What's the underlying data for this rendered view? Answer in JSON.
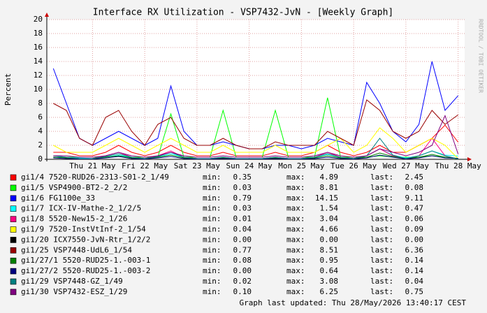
{
  "chart_data": {
    "type": "line",
    "title": "Interface RX Utilization - VSP7432-JvN - [Weekly Graph]",
    "y_label": "Percent",
    "watermark": "RRDTOOL / TOBI OETIKER",
    "footer": "Graph last updated: Thu 28/May/2026 13:40:17 CEST",
    "stat_labels": [
      "min:",
      "max:",
      "last:"
    ],
    "ylim": [
      0,
      20
    ],
    "yticks": [
      0,
      2,
      4,
      6,
      8,
      10,
      12,
      14,
      16,
      18,
      20
    ],
    "grid": true,
    "categories": [
      null,
      null,
      null,
      "Thu 21 May",
      null,
      null,
      null,
      "Fri 22 May",
      null,
      null,
      null,
      "Sat 23 May",
      null,
      null,
      null,
      "Sun 24 May",
      null,
      null,
      null,
      "Mon 25 May",
      null,
      null,
      null,
      "Tue 26 May",
      null,
      null,
      null,
      "Wed 27 May",
      null,
      null,
      null,
      "Thu 28 May"
    ],
    "series": [
      {
        "name": "gi1/4 7520-RUD26-2313-S01-2_1/49",
        "color": "#ff0000",
        "min": "0.35",
        "max": "4.89",
        "last": "2.45",
        "values": [
          1,
          1,
          0.5,
          0.5,
          1,
          2,
          1,
          0.5,
          1,
          2,
          1,
          0.5,
          0.5,
          1,
          0.5,
          0.5,
          0.5,
          1,
          0.5,
          0.5,
          1,
          2,
          1,
          0.5,
          1,
          2,
          1,
          1,
          2,
          3,
          4.89,
          2.45
        ]
      },
      {
        "name": "gi1/5 VSP4900-BT2-2_2/2",
        "color": "#00ff00",
        "min": "0.03",
        "max": "8.81",
        "last": "0.08",
        "values": [
          0.3,
          0.3,
          0.3,
          0.3,
          0.3,
          0.5,
          0.3,
          0.3,
          0.3,
          6.5,
          0.3,
          0.3,
          0.3,
          7,
          0.3,
          0.3,
          0.3,
          7,
          0.3,
          0.3,
          0.3,
          8.81,
          0.3,
          0.3,
          0.3,
          0.5,
          0.3,
          0.3,
          0.3,
          0.5,
          0.3,
          0.08
        ]
      },
      {
        "name": "gi1/6 FG1100e_33",
        "color": "#0000ff",
        "min": "0.79",
        "max": "14.15",
        "last": "9.11",
        "values": [
          13,
          8,
          3,
          2,
          3,
          4,
          3,
          2,
          3,
          10.5,
          4,
          2,
          2,
          2.5,
          2,
          1.5,
          1.5,
          2,
          2,
          1.5,
          2,
          3,
          2.5,
          2,
          11,
          8,
          4,
          2.5,
          5,
          14,
          7,
          9.11
        ]
      },
      {
        "name": "gi1/7 ICX-IV-Mathe-2_1/2/5",
        "color": "#00ffff",
        "min": "0.03",
        "max": "1.54",
        "last": "0.47",
        "values": [
          0.3,
          0.3,
          0.2,
          0.1,
          0.3,
          0.6,
          0.3,
          0.1,
          0.3,
          0.8,
          0.3,
          0.1,
          0.1,
          0.3,
          0.1,
          0.1,
          0.1,
          0.3,
          0.1,
          0.1,
          0.3,
          0.7,
          0.3,
          0.1,
          0.5,
          1.5,
          0.6,
          0.2,
          0.5,
          1.2,
          0.6,
          0.47
        ]
      },
      {
        "name": "gi1/8 5520-New15-2_1/26",
        "color": "#ff0080",
        "min": "0.01",
        "max": "3.04",
        "last": "0.06",
        "values": [
          0.5,
          0.3,
          0.1,
          0.1,
          0.5,
          1,
          0.3,
          0.1,
          0.5,
          1.2,
          0.3,
          0.1,
          0.1,
          0.3,
          0.1,
          0.1,
          0.1,
          0.3,
          0.1,
          0.1,
          0.3,
          1,
          0.3,
          0.1,
          0.5,
          1.5,
          0.5,
          0.1,
          0.5,
          3,
          0.5,
          0.06
        ]
      },
      {
        "name": "gi1/9 7520-InstVtInf-2_1/54",
        "color": "#ffff00",
        "min": "0.04",
        "max": "4.66",
        "last": "0.09",
        "values": [
          2,
          1,
          1,
          1,
          2,
          3,
          2,
          1,
          2,
          3,
          2,
          1,
          1,
          2,
          1,
          1,
          1,
          2,
          1,
          1,
          1,
          2,
          3,
          1,
          2,
          4.5,
          3,
          1,
          2,
          3,
          2,
          0.09
        ]
      },
      {
        "name": "gi1/20 ICX7550-JvN-Rtr_1/2/2",
        "color": "#000000",
        "min": "0.00",
        "max": "0.00",
        "last": "0.00",
        "values": [
          0,
          0,
          0,
          0,
          0,
          0,
          0,
          0,
          0,
          0,
          0,
          0,
          0,
          0,
          0,
          0,
          0,
          0,
          0,
          0,
          0,
          0,
          0,
          0,
          0,
          0,
          0,
          0,
          0,
          0,
          0,
          0
        ]
      },
      {
        "name": "gi1/25 VSP7448-UdL6_1/54",
        "color": "#990000",
        "min": "0.77",
        "max": "8.51",
        "last": "6.36",
        "values": [
          8,
          7,
          3,
          2,
          6,
          7,
          4,
          2,
          5,
          6,
          3,
          2,
          2,
          3,
          2,
          1.5,
          1.5,
          2.5,
          2,
          2,
          2,
          4,
          3,
          2,
          8.5,
          7,
          4,
          3,
          4,
          7,
          5,
          6.36
        ]
      },
      {
        "name": "gi1/27/1 5520-RUD25-1.-003-1",
        "color": "#008000",
        "min": "0.08",
        "max": "0.95",
        "last": "0.14",
        "values": [
          0.3,
          0.2,
          0.1,
          0.1,
          0.3,
          0.5,
          0.2,
          0.1,
          0.3,
          0.6,
          0.2,
          0.1,
          0.1,
          0.2,
          0.1,
          0.1,
          0.1,
          0.2,
          0.1,
          0.1,
          0.2,
          0.5,
          0.2,
          0.1,
          0.3,
          0.9,
          0.4,
          0.1,
          0.3,
          0.7,
          0.3,
          0.14
        ]
      },
      {
        "name": "gi1/27/2 5520-RUD25-1.-003-2",
        "color": "#000080",
        "min": "0.00",
        "max": "0.64",
        "last": "0.14",
        "values": [
          0.2,
          0.1,
          0.05,
          0.05,
          0.2,
          0.4,
          0.1,
          0.05,
          0.2,
          0.4,
          0.1,
          0.05,
          0.05,
          0.1,
          0.05,
          0.05,
          0.05,
          0.1,
          0.05,
          0.05,
          0.1,
          0.3,
          0.1,
          0.05,
          0.2,
          0.6,
          0.3,
          0.05,
          0.2,
          0.5,
          0.2,
          0.14
        ]
      },
      {
        "name": "gi1/29 VSP7448-GZ_1/49",
        "color": "#008080",
        "min": "0.02",
        "max": "3.08",
        "last": "0.04",
        "values": [
          0.5,
          0.3,
          0.1,
          0.1,
          0.4,
          0.8,
          0.3,
          0.1,
          0.4,
          1,
          0.3,
          0.1,
          0.1,
          0.3,
          0.1,
          0.1,
          0.1,
          0.3,
          0.1,
          0.1,
          0.3,
          0.8,
          0.3,
          0.1,
          0.5,
          3,
          0.6,
          0.1,
          0.5,
          1.2,
          0.5,
          0.04
        ]
      },
      {
        "name": "gi1/30 VSP7432-ESZ_1/29",
        "color": "#800080",
        "min": "0.10",
        "max": "6.25",
        "last": "0.75",
        "values": [
          0.5,
          0.5,
          0.3,
          0.3,
          0.5,
          1,
          0.5,
          0.3,
          0.5,
          1,
          0.5,
          0.3,
          0.3,
          0.5,
          0.3,
          0.3,
          0.3,
          0.5,
          0.3,
          0.3,
          0.5,
          1,
          0.5,
          0.3,
          0.5,
          1.5,
          1,
          0.5,
          1,
          2,
          6.25,
          0.75
        ]
      }
    ]
  }
}
